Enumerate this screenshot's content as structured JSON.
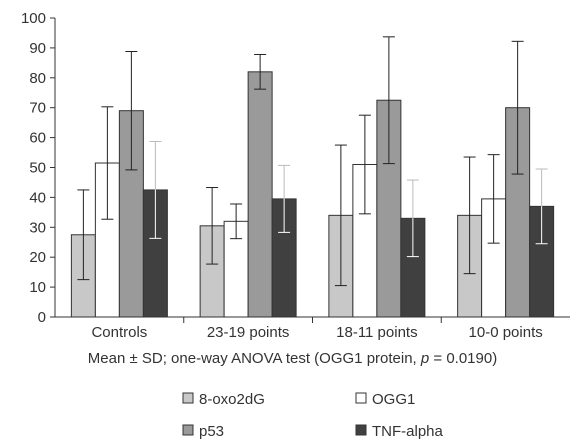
{
  "chart_data": {
    "type": "bar",
    "categories": [
      "Controls",
      "23-19 points",
      "18-11 points",
      "10-0 points"
    ],
    "series": [
      {
        "name": "8-oxo2dG",
        "color": "#c8c8c8",
        "values": [
          27.5,
          30.5,
          34,
          34
        ],
        "sd": [
          15,
          12.8,
          23.5,
          19.5
        ]
      },
      {
        "name": "OGG1",
        "color": "#ffffff",
        "values": [
          51.5,
          32,
          51,
          39.5
        ],
        "sd": [
          18.8,
          5.8,
          16.5,
          14.8
        ]
      },
      {
        "name": "p53",
        "color": "#9a9a9a",
        "values": [
          69,
          82,
          72.5,
          70
        ],
        "sd": [
          19.8,
          5.8,
          21.2,
          22.2
        ]
      },
      {
        "name": "TNF-alpha",
        "color": "#404040",
        "values": [
          42.5,
          39.5,
          33,
          37
        ],
        "sd": [
          16.2,
          11.2,
          12.8,
          12.5
        ]
      }
    ],
    "xlabel": {
      "prefix": "Mean ± SD; one-way ANOVA test (OGG1 protein, ",
      "pvar": "p",
      "suffix": " = 0.0190)"
    },
    "ylim": [
      0,
      100
    ],
    "yticks": [
      "0",
      "10",
      "20",
      "30",
      "40",
      "50",
      "60",
      "70",
      "80",
      "90",
      "100"
    ],
    "grid": false,
    "legend_position": "bottom"
  }
}
